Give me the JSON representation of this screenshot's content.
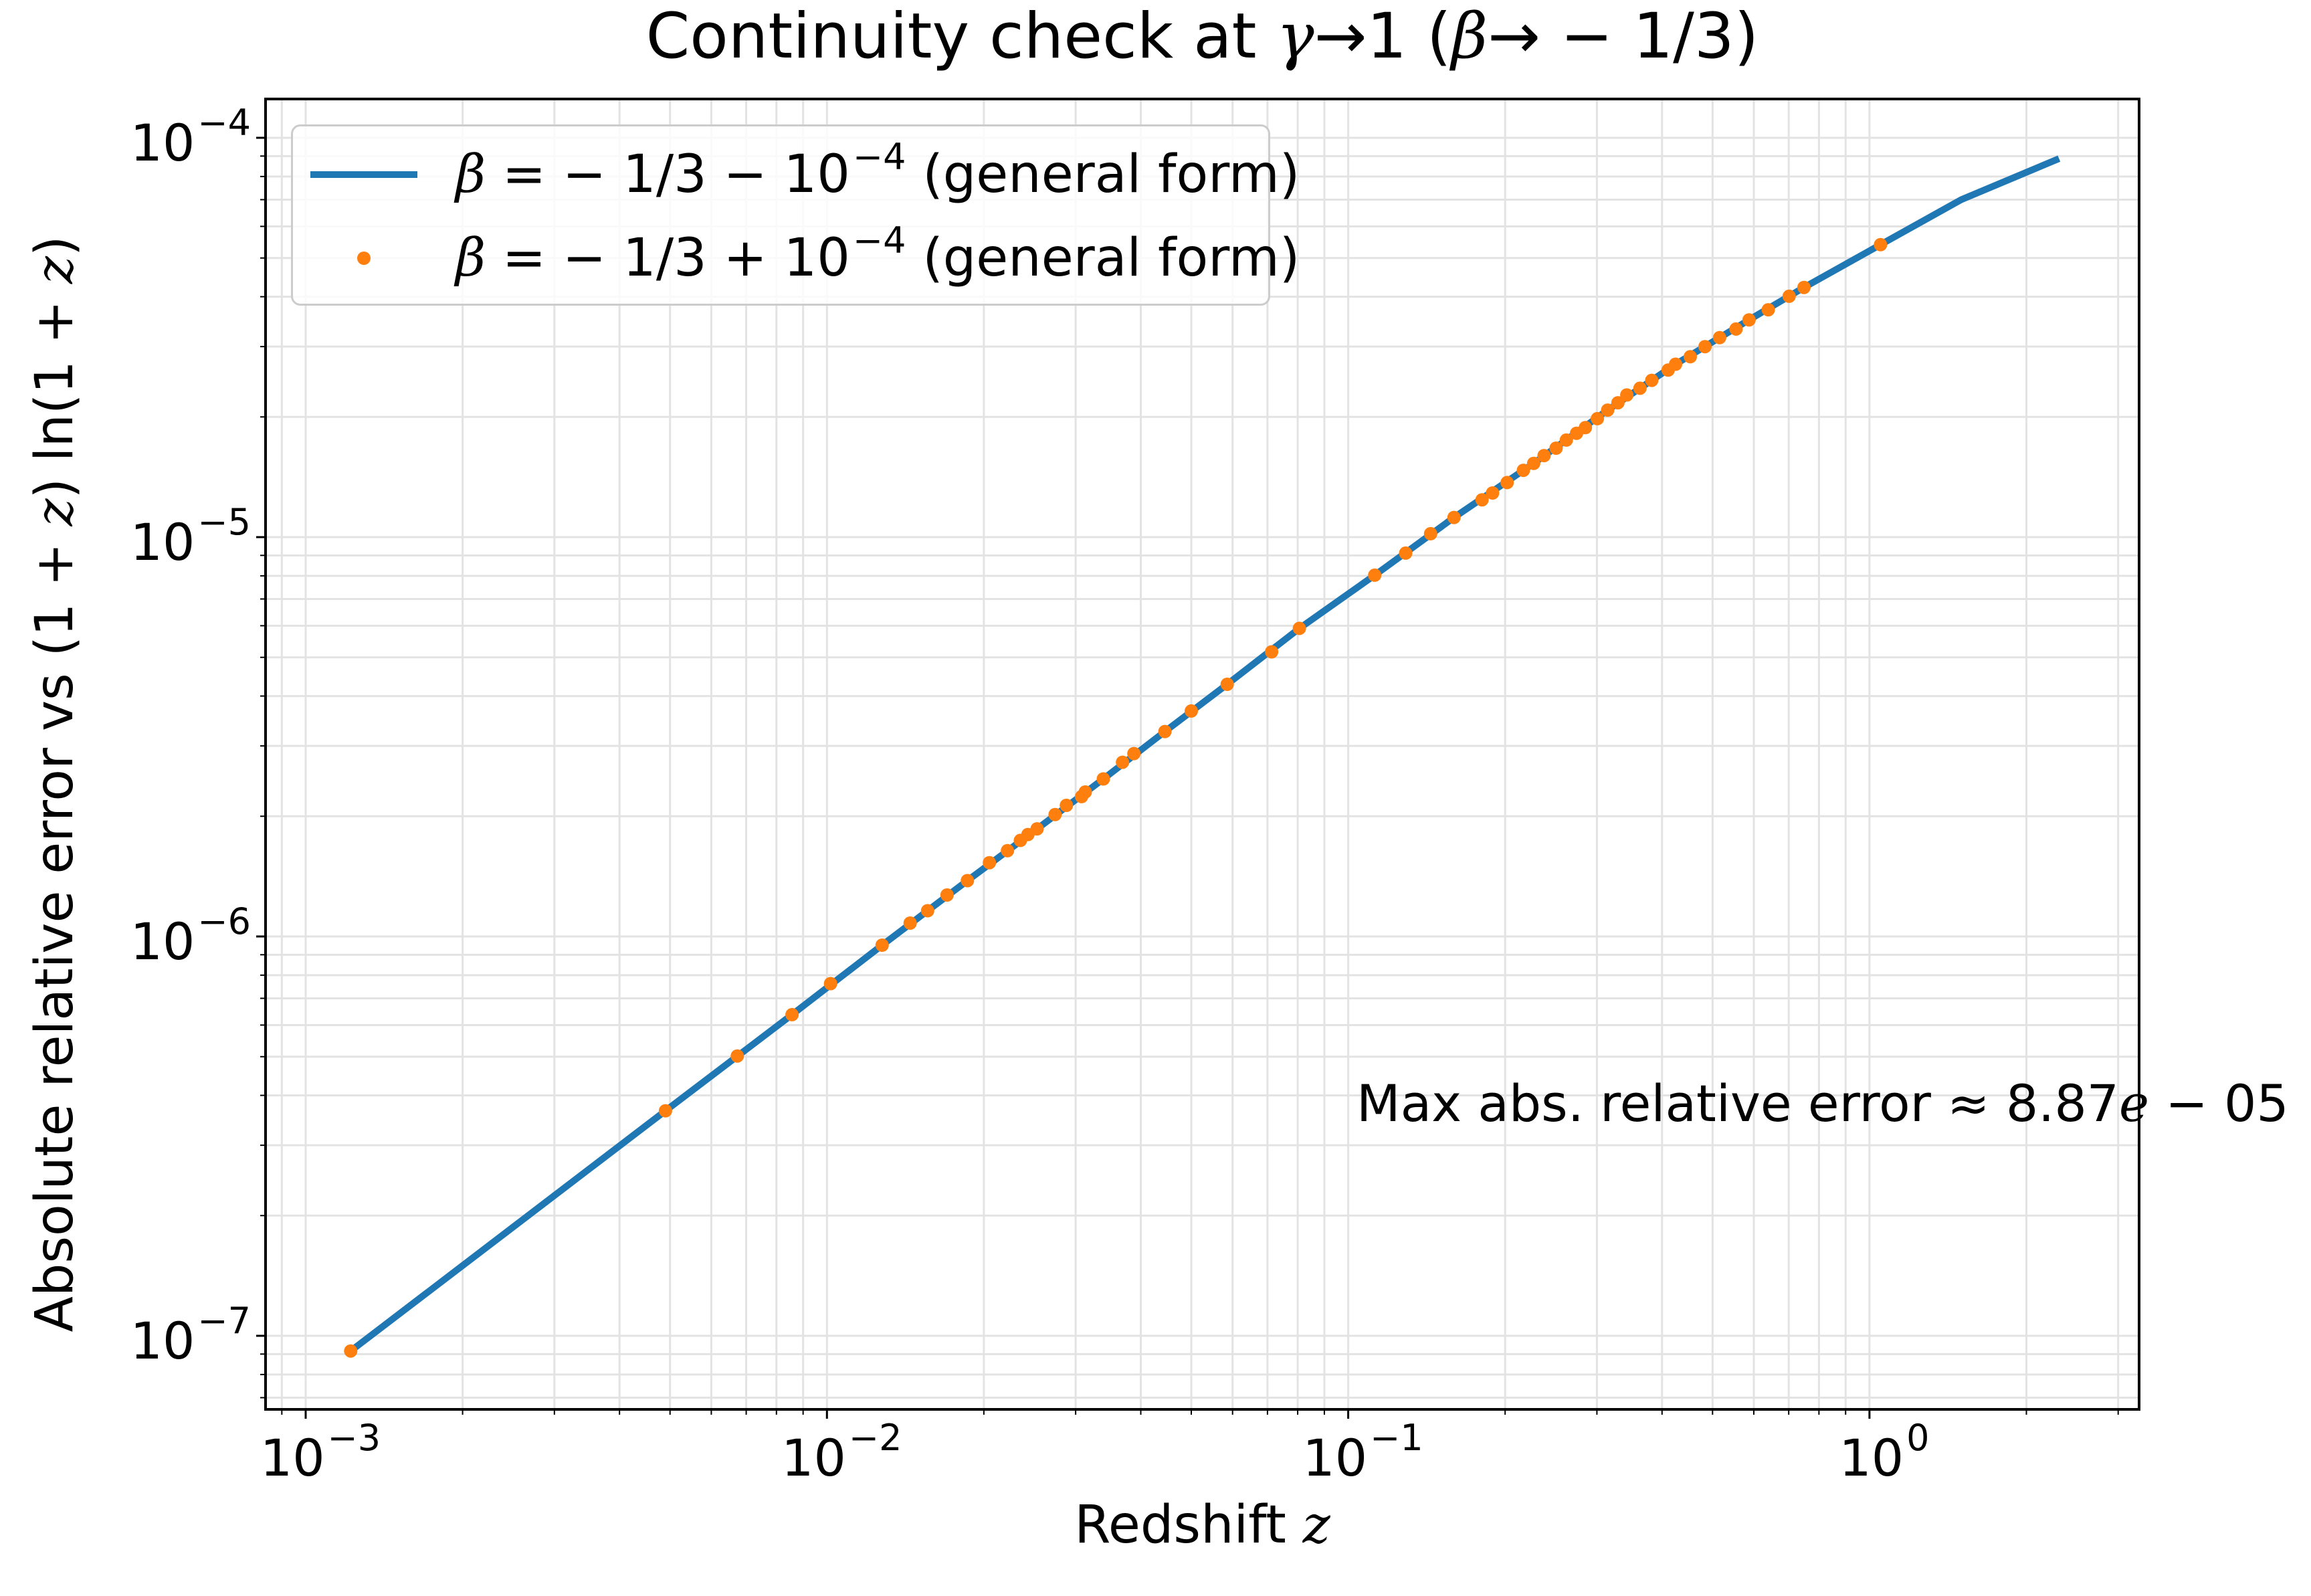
{
  "chart_data": {
    "type": "line",
    "title": "Continuity check at γ→1 (β→−1/3)",
    "xlabel": "Redshift z",
    "ylabel": "Absolute relative error vs (1+z) ln(1+z)",
    "xscale": "log",
    "yscale": "log",
    "xlim": [
      0.00083,
      3.3
    ],
    "ylim": [
      6.6e-08,
      0.000125
    ],
    "grid": true,
    "legend_position": "upper left",
    "x_ticks": [
      {
        "base": "10",
        "exp": "−3",
        "value": 0.001
      },
      {
        "base": "10",
        "exp": "−2",
        "value": 0.01
      },
      {
        "base": "10",
        "exp": "−1",
        "value": 0.1
      },
      {
        "base": "10",
        "exp": "0",
        "value": 1
      }
    ],
    "y_ticks": [
      {
        "base": "10",
        "exp": "−4",
        "value": 0.0001
      },
      {
        "base": "10",
        "exp": "−5",
        "value": 1e-05
      },
      {
        "base": "10",
        "exp": "−6",
        "value": 1e-06
      },
      {
        "base": "10",
        "exp": "−7",
        "value": 1e-07
      }
    ],
    "series": [
      {
        "name": "β = −1/3 − 10⁻⁴ (general form)",
        "legend_prefix": "β = −1/3 − 10",
        "legend_exp": "−4",
        "legend_suffix": " (general form)",
        "style": "line",
        "color": "#1f77b4",
        "x": [
          0.00122,
          0.0049,
          0.00857,
          0.01276,
          0.0186,
          0.0253,
          0.0339,
          0.0445,
          0.0586,
          0.0806,
          0.1124,
          0.1596,
          0.2269,
          0.3146,
          0.4246,
          0.5875,
          0.7489,
          1.05,
          1.5,
          2.31
        ],
        "y": [
          9.16e-08,
          3.66e-07,
          6.37e-07,
          9.51e-07,
          1.38e-06,
          1.86e-06,
          2.48e-06,
          3.26e-06,
          4.28e-06,
          5.91e-06,
          8.03e-06,
          1.12e-05,
          1.53e-05,
          2.08e-05,
          2.71e-05,
          3.5e-05,
          4.22e-05,
          5.4e-05,
          7e-05,
          8.87e-05
        ]
      },
      {
        "name": "β = −1/3 + 10⁻⁴ (general form)",
        "legend_prefix": "β = −1/3 + 10",
        "legend_exp": "−4",
        "legend_suffix": " (general form)",
        "style": "markers",
        "color": "#ff7f0e",
        "x": [
          0.00122,
          0.0049,
          0.00673,
          0.00857,
          0.01016,
          0.01276,
          0.01444,
          0.0156,
          0.017,
          0.0186,
          0.0205,
          0.0222,
          0.0235,
          0.0243,
          0.0253,
          0.0274,
          0.0288,
          0.0308,
          0.0313,
          0.0339,
          0.0369,
          0.0388,
          0.0445,
          0.05,
          0.0586,
          0.0713,
          0.0806,
          0.1124,
          0.1289,
          0.1439,
          0.1596,
          0.1806,
          0.1892,
          0.2018,
          0.2168,
          0.2269,
          0.2375,
          0.2505,
          0.2621,
          0.2742,
          0.2851,
          0.3006,
          0.3146,
          0.3292,
          0.3423,
          0.3629,
          0.3822,
          0.4109,
          0.4246,
          0.4532,
          0.4835,
          0.5159,
          0.5547,
          0.5875,
          0.6395,
          0.7012,
          0.7489,
          1.05
        ],
        "y": [
          9.16e-08,
          3.66e-07,
          5.02e-07,
          6.37e-07,
          7.62e-07,
          9.51e-07,
          1.08e-06,
          1.16e-06,
          1.27e-06,
          1.38e-06,
          1.53e-06,
          1.64e-06,
          1.74e-06,
          1.8e-06,
          1.86e-06,
          2.02e-06,
          2.13e-06,
          2.24e-06,
          2.3e-06,
          2.48e-06,
          2.73e-06,
          2.87e-06,
          3.26e-06,
          3.67e-06,
          4.28e-06,
          5.16e-06,
          5.91e-06,
          8.03e-06,
          9.12e-06,
          1.02e-05,
          1.12e-05,
          1.24e-05,
          1.29e-05,
          1.37e-05,
          1.47e-05,
          1.53e-05,
          1.6e-05,
          1.67e-05,
          1.75e-05,
          1.82e-05,
          1.88e-05,
          1.98e-05,
          2.08e-05,
          2.17e-05,
          2.27e-05,
          2.36e-05,
          2.47e-05,
          2.62e-05,
          2.71e-05,
          2.83e-05,
          3e-05,
          3.16e-05,
          3.32e-05,
          3.5e-05,
          3.71e-05,
          4.01e-05,
          4.22e-05,
          5.4e-05
        ]
      }
    ],
    "annotations": [
      {
        "text": "Max abs. relative error  ≈ 8.87e−05",
        "x_axes_frac": 0.58,
        "y_axes_frac": 0.2
      }
    ]
  },
  "title": {
    "prefix": "Continuity check at ",
    "gamma": "γ",
    "middle": "→1 (",
    "beta": "β",
    "suffix": "→ − 1/3)"
  },
  "xlabel": {
    "text": "Redshift ",
    "var": "z"
  },
  "ylabel": {
    "prefix": "Absolute relative error vs (1 + ",
    "z1": "z",
    "mid": ") ln(1 + ",
    "z2": "z",
    "suffix": ")"
  },
  "legend": {
    "items": [
      {
        "beta": "β",
        "text": " = − 1/3 − 10",
        "exp": "−4",
        "suffix": " (general form)"
      },
      {
        "beta": "β",
        "text": " = − 1/3 + 10",
        "exp": "−4",
        "suffix": " (general form)"
      }
    ]
  },
  "annotation": {
    "prefix": "Max abs. relative error  ≈ 8.87",
    "e": "e",
    "suffix": " − 05"
  }
}
